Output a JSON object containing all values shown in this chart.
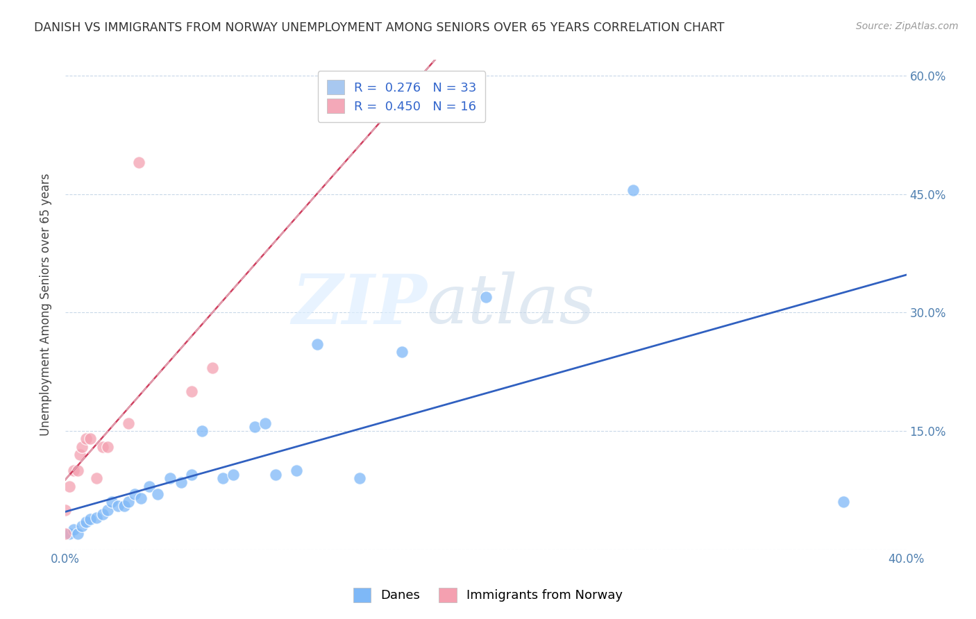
{
  "title": "DANISH VS IMMIGRANTS FROM NORWAY UNEMPLOYMENT AMONG SENIORS OVER 65 YEARS CORRELATION CHART",
  "source": "Source: ZipAtlas.com",
  "ylabel": "Unemployment Among Seniors over 65 years",
  "xlim": [
    0.0,
    0.4
  ],
  "ylim": [
    0.0,
    0.62
  ],
  "xtick_positions": [
    0.0,
    0.05,
    0.1,
    0.15,
    0.2,
    0.25,
    0.3,
    0.35,
    0.4
  ],
  "xticklabels": [
    "0.0%",
    "",
    "",
    "",
    "",
    "",
    "",
    "",
    "40.0%"
  ],
  "ytick_positions": [
    0.0,
    0.15,
    0.3,
    0.45,
    0.6
  ],
  "yticklabels_right": [
    "",
    "15.0%",
    "30.0%",
    "45.0%",
    "60.0%"
  ],
  "legend_r_n": [
    {
      "label": "R =  0.276   N = 33",
      "fc": "#a8c8f0"
    },
    {
      "label": "R =  0.450   N = 16",
      "fc": "#f4a8b8"
    }
  ],
  "danes_x": [
    0.002,
    0.004,
    0.006,
    0.008,
    0.01,
    0.012,
    0.015,
    0.018,
    0.02,
    0.022,
    0.025,
    0.028,
    0.03,
    0.033,
    0.036,
    0.04,
    0.044,
    0.05,
    0.055,
    0.06,
    0.065,
    0.075,
    0.08,
    0.09,
    0.095,
    0.1,
    0.11,
    0.12,
    0.14,
    0.16,
    0.2,
    0.27,
    0.37
  ],
  "danes_y": [
    0.02,
    0.025,
    0.02,
    0.03,
    0.035,
    0.038,
    0.04,
    0.045,
    0.05,
    0.06,
    0.055,
    0.055,
    0.06,
    0.07,
    0.065,
    0.08,
    0.07,
    0.09,
    0.085,
    0.095,
    0.15,
    0.09,
    0.095,
    0.155,
    0.16,
    0.095,
    0.1,
    0.26,
    0.09,
    0.25,
    0.32,
    0.455,
    0.06
  ],
  "norway_x": [
    0.0,
    0.0,
    0.002,
    0.004,
    0.006,
    0.007,
    0.008,
    0.01,
    0.012,
    0.015,
    0.018,
    0.02,
    0.03,
    0.035,
    0.06,
    0.07
  ],
  "norway_y": [
    0.02,
    0.05,
    0.08,
    0.1,
    0.1,
    0.12,
    0.13,
    0.14,
    0.14,
    0.09,
    0.13,
    0.13,
    0.16,
    0.49,
    0.2,
    0.23
  ],
  "danes_color": "#7eb8f7",
  "norway_color": "#f4a0b0",
  "danes_line_color": "#3060c0",
  "norway_line_solid_color": "#d04060",
  "norway_line_dash_color": "#e0a0b0",
  "watermark_zip": "ZIP",
  "watermark_atlas": "atlas",
  "bottom_legend": [
    "Danes",
    "Immigrants from Norway"
  ]
}
